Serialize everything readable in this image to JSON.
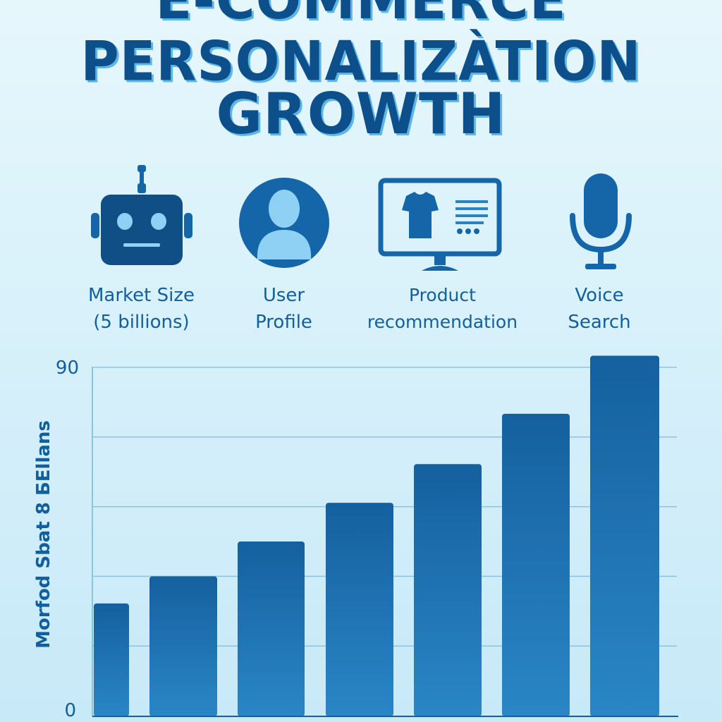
{
  "title": {
    "line1": "E-COMMERCE",
    "line2": "PERSONALIZÀTION",
    "line3": "GROWTH"
  },
  "features": [
    {
      "icon": "robot-icon",
      "line1": "Market Size",
      "line2": "(5 billions)"
    },
    {
      "icon": "user-profile-icon",
      "line1": "User",
      "line2": "Profile"
    },
    {
      "icon": "monitor-shirt-icon",
      "line1": "Product",
      "line2": "recommendation"
    },
    {
      "icon": "microphone-icon",
      "line1": "Voice",
      "line2": "Search"
    }
  ],
  "colors": {
    "bar": "#1a6aa8",
    "title": "#0d4f8a",
    "grid": "#8cc4dc",
    "icon": "#1466a8",
    "icon_light": "#8fd0f5"
  },
  "chart_data": {
    "type": "bar",
    "title": "E-COMMERCE PERSONALIZÀTION GROWTH",
    "ylabel": "Morfod Sbat 8 БEllans",
    "xlabel": "",
    "ylim": [
      0,
      90
    ],
    "yticks": [
      0,
      90
    ],
    "ytick_labels": [
      "0",
      "90"
    ],
    "gridlines": [
      18,
      36,
      54,
      72,
      90
    ],
    "grid": true,
    "categories": [
      "",
      "",
      "",
      "",
      "",
      "",
      ""
    ],
    "values": [
      29,
      36,
      45,
      55,
      65,
      78,
      93
    ]
  }
}
